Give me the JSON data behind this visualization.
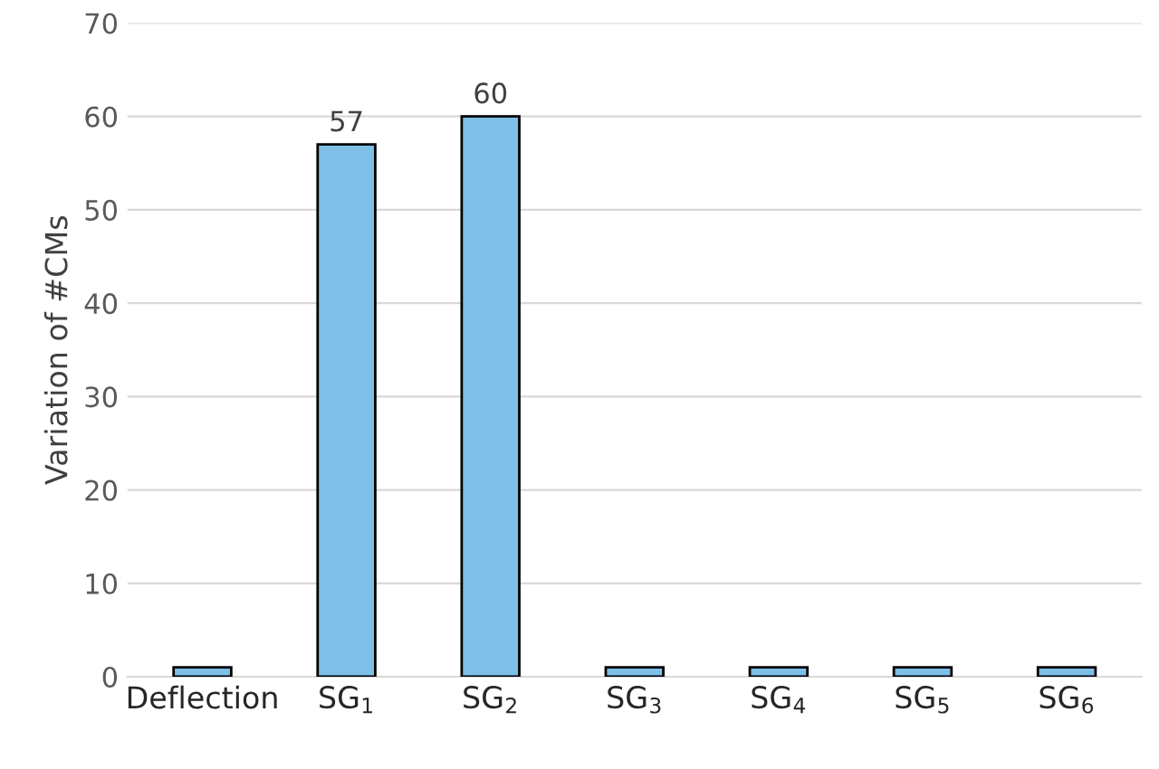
{
  "chart_data": {
    "type": "bar",
    "ylabel": "Variation of #CMs",
    "categories": [
      "Deflection",
      "SG$_{1}$",
      "SG$_{2}$",
      "SG$_{3}$",
      "SG$_{4}$",
      "SG$_{5}$",
      "SG$_{6}$"
    ],
    "values": [
      1,
      57,
      60,
      1,
      1,
      1,
      1
    ],
    "value_labels": [
      null,
      "57",
      "60",
      null,
      null,
      null,
      null
    ],
    "color": "#7dbfe6",
    "ylim": [
      0,
      70
    ],
    "yticks": [
      0,
      10,
      20,
      30,
      40,
      50,
      60,
      70
    ],
    "grid": "y",
    "legend": false
  }
}
